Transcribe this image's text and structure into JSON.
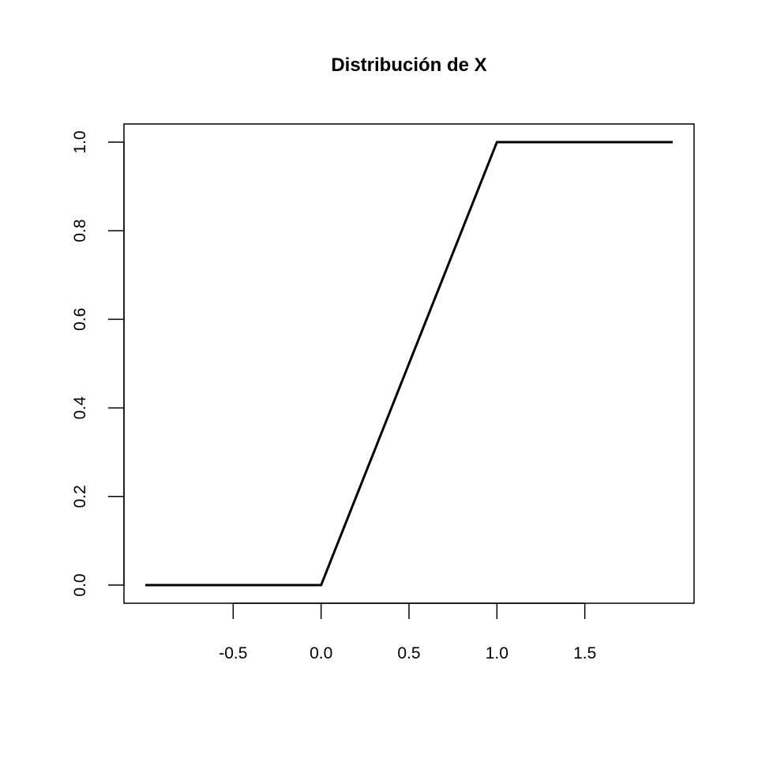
{
  "chart_data": {
    "type": "line",
    "title": "Distribución de X",
    "xlabel": "",
    "ylabel": "",
    "xlim": [
      -1.0,
      2.0
    ],
    "ylim": [
      0.0,
      1.0
    ],
    "x_ticks": [
      -0.5,
      0.0,
      0.5,
      1.0,
      1.5
    ],
    "x_tick_labels": [
      "-0.5",
      "0.0",
      "0.5",
      "1.0",
      "1.5"
    ],
    "y_ticks": [
      0.0,
      0.2,
      0.4,
      0.6,
      0.8,
      1.0
    ],
    "y_tick_labels": [
      "0.0",
      "0.2",
      "0.4",
      "0.6",
      "0.8",
      "1.0"
    ],
    "grid": false,
    "legend": "none",
    "series": [
      {
        "color": "#000000",
        "x": [
          -1.0,
          0.0,
          1.0,
          2.0
        ],
        "y": [
          0.0,
          0.0,
          1.0,
          1.0
        ]
      }
    ]
  }
}
